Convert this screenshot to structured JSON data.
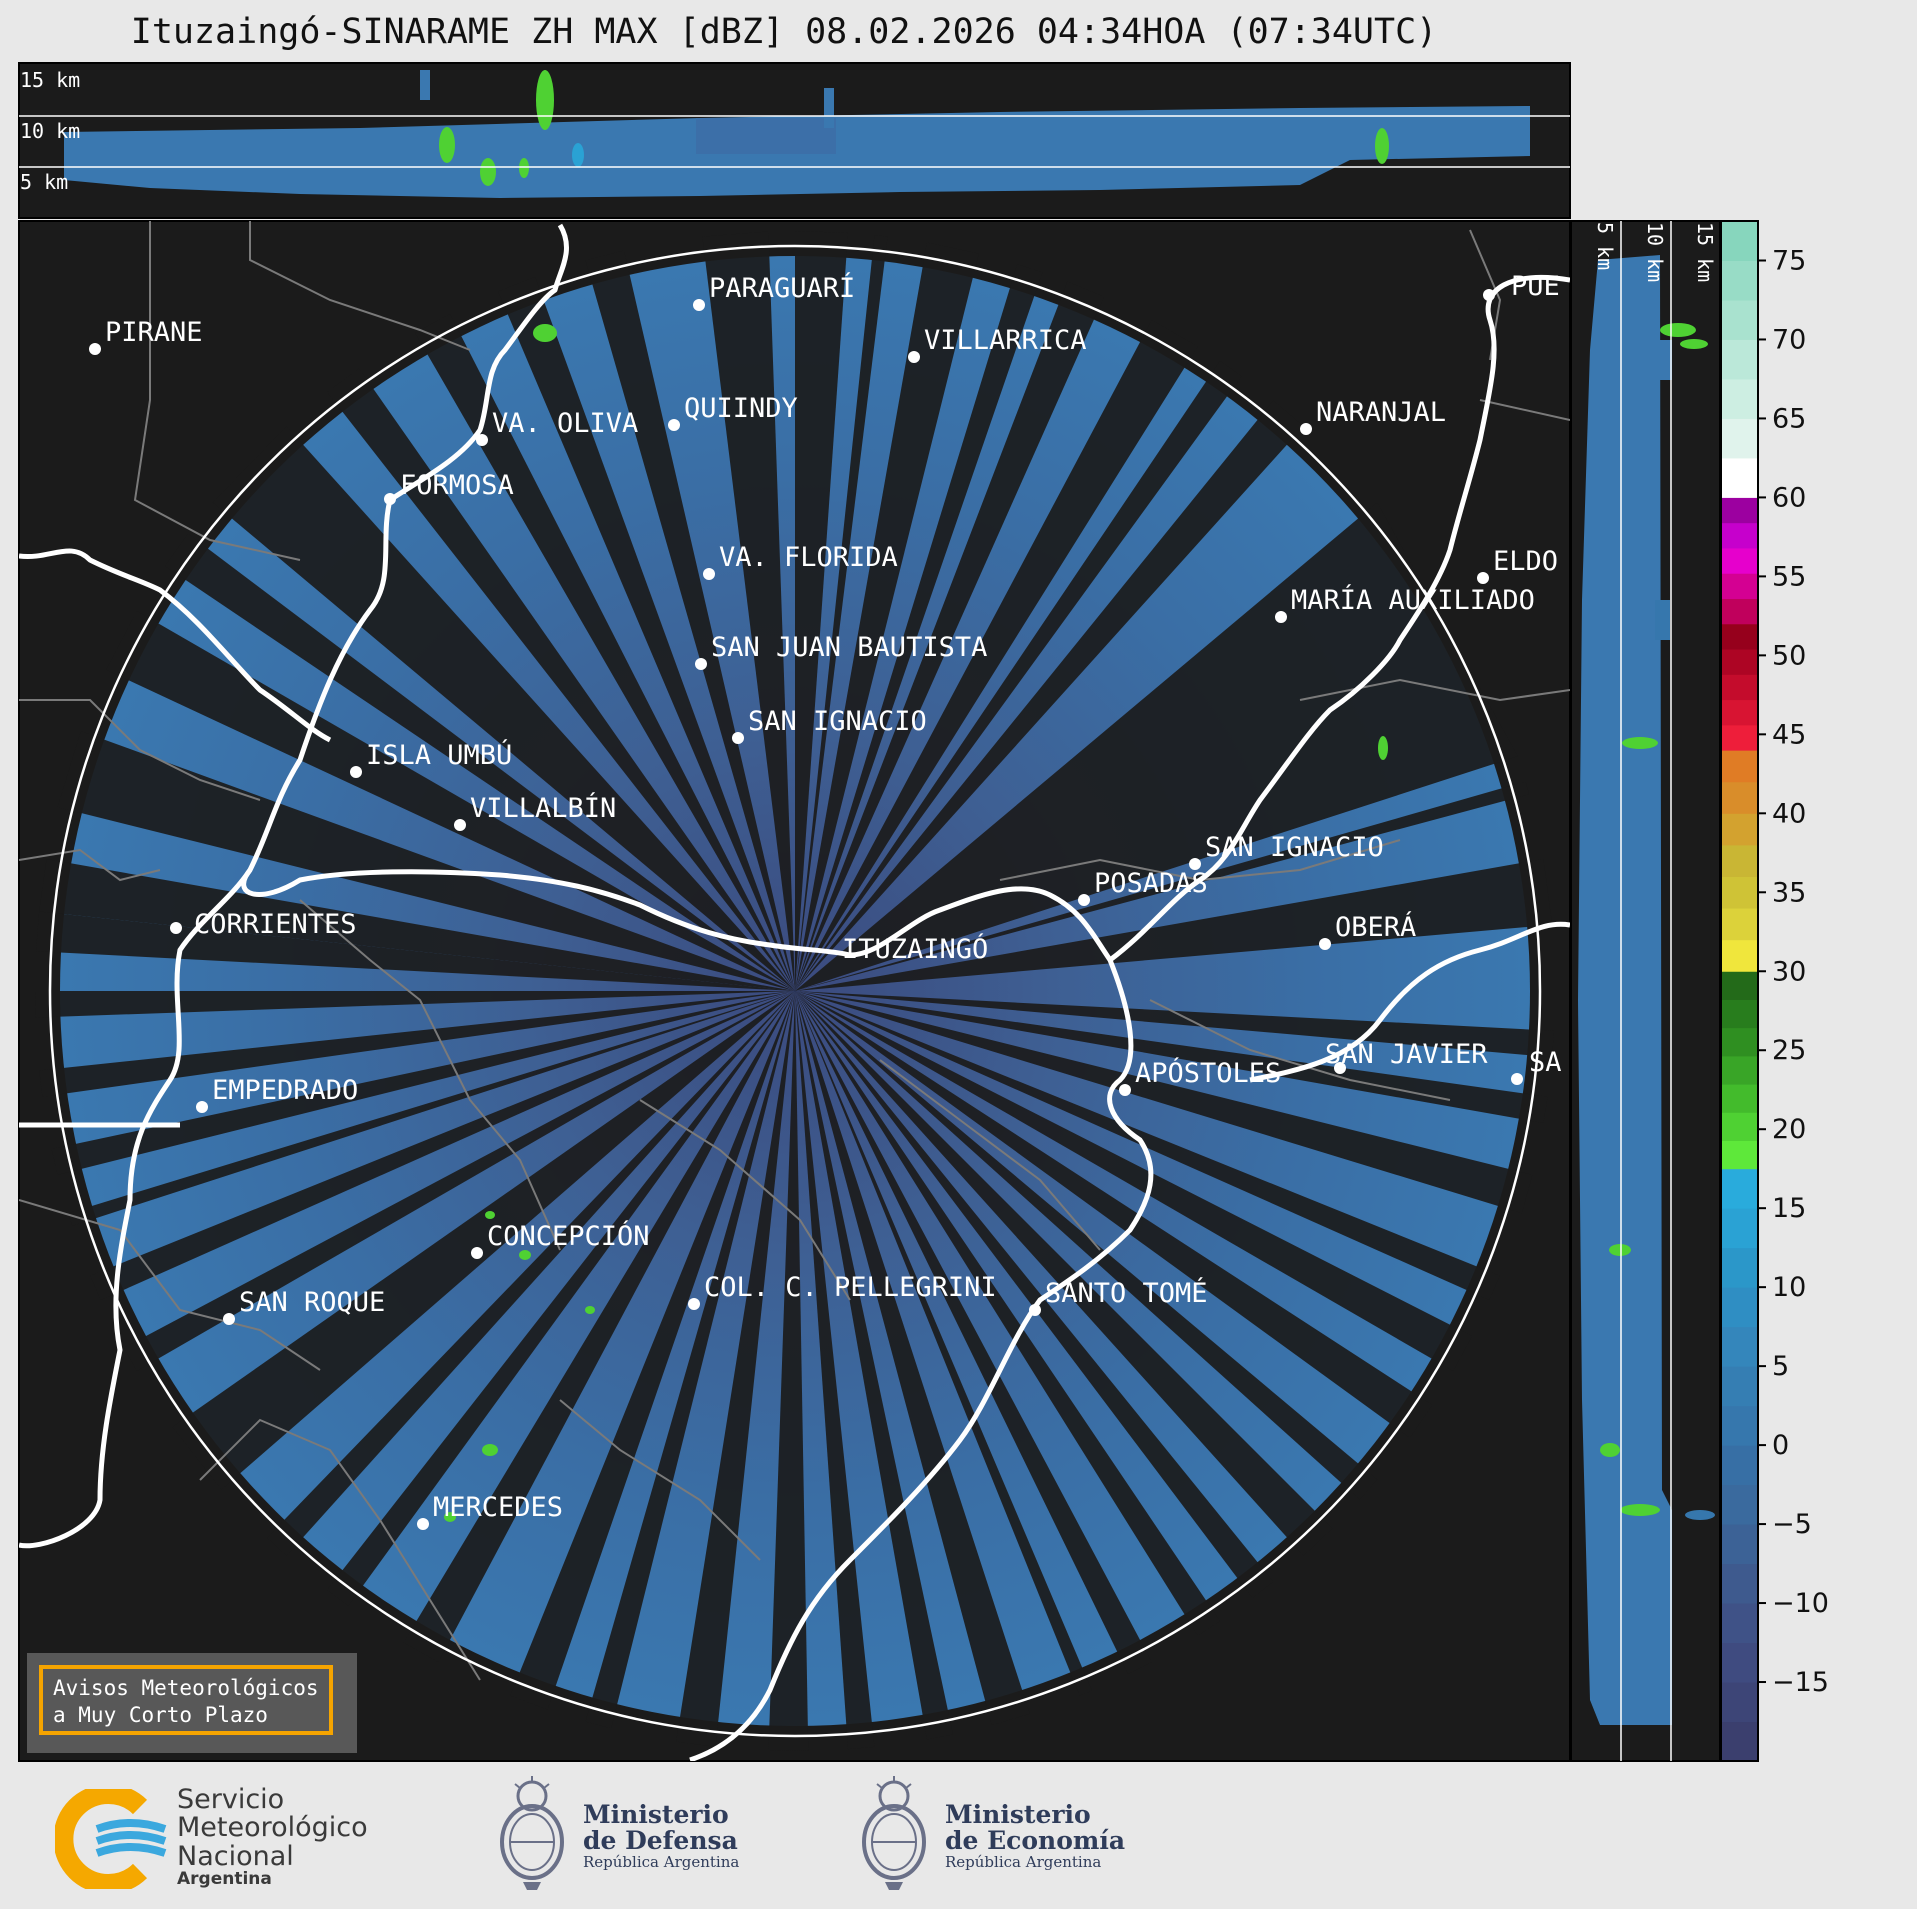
{
  "title": "Ituzaingó-SINARAME ZH MAX [dBZ] 08.02.2026 04:34HOA (07:34UTC)",
  "top_panel": {
    "height_labels": [
      "15 km",
      "10 km",
      "5 km"
    ]
  },
  "side_panel": {
    "height_labels": [
      "5 km",
      "10 km",
      "15 km"
    ]
  },
  "colorbar": {
    "unit": "dBZ",
    "ticks": [
      "75",
      "70",
      "65",
      "60",
      "55",
      "50",
      "45",
      "40",
      "35",
      "30",
      "25",
      "20",
      "15",
      "10",
      "5",
      "0",
      "−5",
      "−10",
      "−15"
    ],
    "colors": {
      "neg": [
        "#3b3f6e",
        "#3d4577",
        "#3f4b80",
        "#3f5287",
        "#3e5a8e",
        "#3c6296",
        "#3a6a9e",
        "#376fa5"
      ],
      "low": [
        "#3677ad",
        "#357eb3",
        "#3486bb",
        "#2f8ec3",
        "#2b97c9",
        "#2aa2d4",
        "#29abdc"
      ],
      "green": [
        "#5ee83a",
        "#4fd133",
        "#43bb2c",
        "#39a527",
        "#2f8f21",
        "#287d1d",
        "#236a19"
      ],
      "yellow": [
        "#f0e63c",
        "#dcd23a",
        "#cfc336",
        "#c9b634",
        "#d3a22f",
        "#d98d2a",
        "#e07c25"
      ],
      "red": [
        "#ee1e3a",
        "#d81432",
        "#c40c2c",
        "#ad0524",
        "#96001c",
        "#c0005c",
        "#d40092",
        "#e600cc",
        "#c600cc",
        "#9c00a0"
      ],
      "top": [
        "#ffffff",
        "#e0f3ec",
        "#cdeee2",
        "#bbe8d9",
        "#a9e2cf",
        "#98dcc6",
        "#87d6bd"
      ]
    }
  },
  "map": {
    "radar_site": "ITUZAINGÓ",
    "cities": [
      {
        "name": "PIRANE"
      },
      {
        "name": "PARAGUARÍ"
      },
      {
        "name": "VILLARRICA"
      },
      {
        "name": "QUIINDY"
      },
      {
        "name": "VA. OLIVA"
      },
      {
        "name": "FORMOSA"
      },
      {
        "name": "NARANJAL"
      },
      {
        "name": "PUE"
      },
      {
        "name": "VA. FLORIDA"
      },
      {
        "name": "ELDO"
      },
      {
        "name": "MARÍA AUXILIADO"
      },
      {
        "name": "SAN JUAN BAUTISTA"
      },
      {
        "name": "SAN IGNACIO"
      },
      {
        "name": "ISLA UMBÚ"
      },
      {
        "name": "VILLALBÍN"
      },
      {
        "name": "SAN IGNACIO"
      },
      {
        "name": "POSADAS"
      },
      {
        "name": "CORRIENTES"
      },
      {
        "name": "OBERÁ"
      },
      {
        "name": "APÓSTOLES"
      },
      {
        "name": "SAN JAVIER"
      },
      {
        "name": "SA"
      },
      {
        "name": "EMPEDRADO"
      },
      {
        "name": "CONCEPCIÓN"
      },
      {
        "name": "COL. C. PELLEGRINI"
      },
      {
        "name": "SANTO TOMÉ"
      },
      {
        "name": "SAN ROQUE"
      },
      {
        "name": "MERCEDES"
      }
    ],
    "notice": [
      "Avisos Meteorológicos",
      "a Muy Corto Plazo"
    ]
  },
  "footer": {
    "smn": [
      "Servicio",
      "Meteorológico",
      "Nacional",
      "Argentina"
    ],
    "defensa": [
      "Ministerio",
      "de Defensa",
      "República Argentina"
    ],
    "economia": [
      "Ministerio",
      "de Economía",
      "República Argentina"
    ]
  }
}
